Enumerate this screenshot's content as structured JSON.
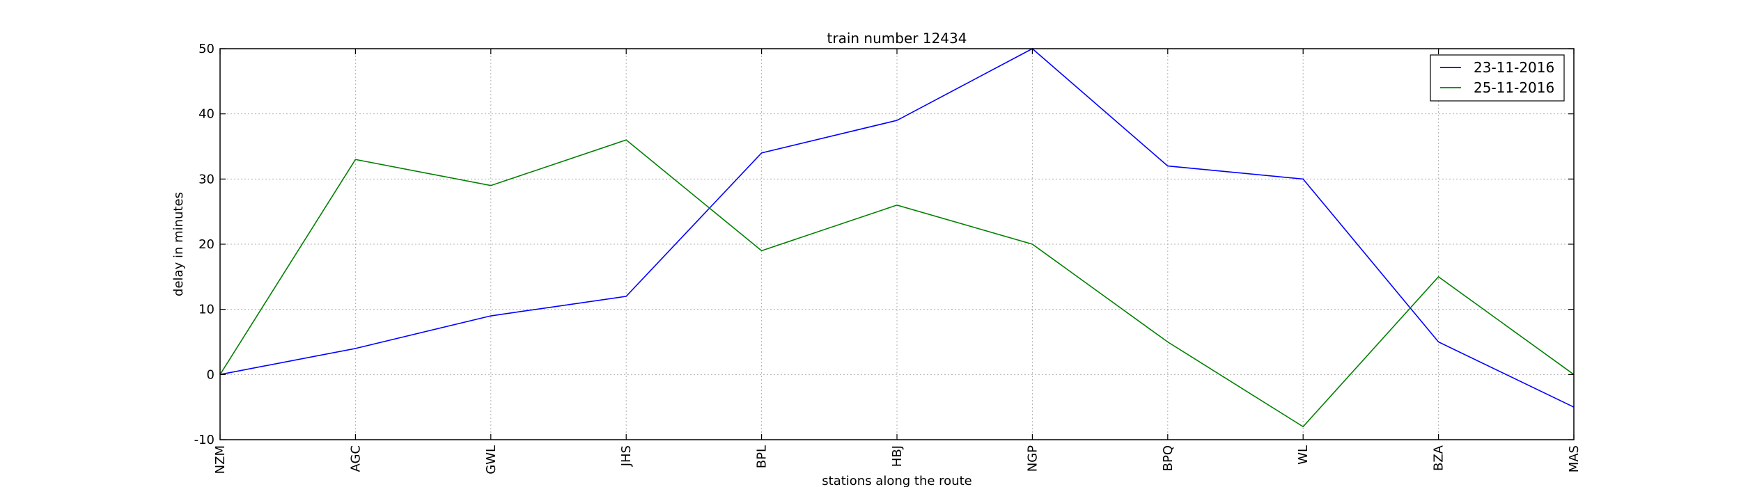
{
  "chart_data": {
    "type": "line",
    "title": "train number 12434",
    "xlabel": "stations along the route",
    "ylabel": "delay in minutes",
    "categories": [
      "NZM",
      "AGC",
      "GWL",
      "JHS",
      "BPL",
      "HBJ",
      "NGP",
      "BPQ",
      "WL",
      "BZA",
      "MAS"
    ],
    "ylim": [
      -10,
      50
    ],
    "yticks": [
      -10,
      0,
      10,
      20,
      30,
      40,
      50
    ],
    "grid": true,
    "legend_position": "top-right",
    "series": [
      {
        "name": "23-11-2016",
        "color": "#0000ff",
        "values": [
          0,
          4,
          9,
          12,
          34,
          39,
          50,
          32,
          30,
          5,
          -5
        ]
      },
      {
        "name": "25-11-2016",
        "color": "#008000",
        "values": [
          0,
          33,
          29,
          36,
          19,
          26,
          20,
          5,
          -8,
          15,
          0
        ]
      }
    ]
  }
}
